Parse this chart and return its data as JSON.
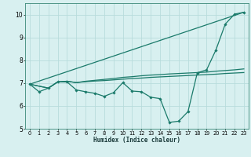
{
  "xlabel": "Humidex (Indice chaleur)",
  "bg_color": "#d8f0f0",
  "grid_color": "#b8dcdc",
  "line_color": "#1a7a6a",
  "xlim": [
    -0.5,
    23.5
  ],
  "ylim": [
    5,
    10.5
  ],
  "yticks": [
    5,
    6,
    7,
    8,
    9,
    10
  ],
  "xticks": [
    0,
    1,
    2,
    3,
    4,
    5,
    6,
    7,
    8,
    9,
    10,
    11,
    12,
    13,
    14,
    15,
    16,
    17,
    18,
    19,
    20,
    21,
    22,
    23
  ],
  "line1_x": [
    0,
    1,
    2,
    3,
    4,
    5,
    6,
    7,
    8,
    9,
    10,
    11,
    12,
    13,
    14,
    15,
    16,
    17,
    18,
    19,
    20,
    21,
    22,
    23
  ],
  "line1_y": [
    6.95,
    6.62,
    6.78,
    7.05,
    7.05,
    6.7,
    6.62,
    6.55,
    6.42,
    6.58,
    7.02,
    6.65,
    6.62,
    6.38,
    6.32,
    5.28,
    5.33,
    5.75,
    7.45,
    7.58,
    8.45,
    9.58,
    10.02,
    10.1
  ],
  "line2_x": [
    0,
    23
  ],
  "line2_y": [
    6.95,
    10.1
  ],
  "line3_x": [
    0,
    2,
    3,
    4,
    5,
    6,
    7,
    8,
    9,
    10,
    11,
    12,
    13,
    14,
    15,
    16,
    17,
    18,
    19,
    20,
    21,
    22,
    23
  ],
  "line3_y": [
    6.95,
    6.78,
    7.05,
    7.08,
    7.02,
    7.08,
    7.12,
    7.16,
    7.2,
    7.25,
    7.28,
    7.32,
    7.35,
    7.37,
    7.4,
    7.42,
    7.44,
    7.46,
    7.48,
    7.52,
    7.55,
    7.58,
    7.62
  ],
  "line4_x": [
    0,
    2,
    3,
    4,
    5,
    6,
    7,
    8,
    9,
    10,
    11,
    12,
    13,
    14,
    15,
    16,
    17,
    18,
    19,
    20,
    21,
    22,
    23
  ],
  "line4_y": [
    6.95,
    6.78,
    7.05,
    7.08,
    7.02,
    7.06,
    7.09,
    7.11,
    7.14,
    7.17,
    7.2,
    7.22,
    7.25,
    7.27,
    7.29,
    7.31,
    7.33,
    7.35,
    7.37,
    7.39,
    7.42,
    7.44,
    7.46
  ]
}
